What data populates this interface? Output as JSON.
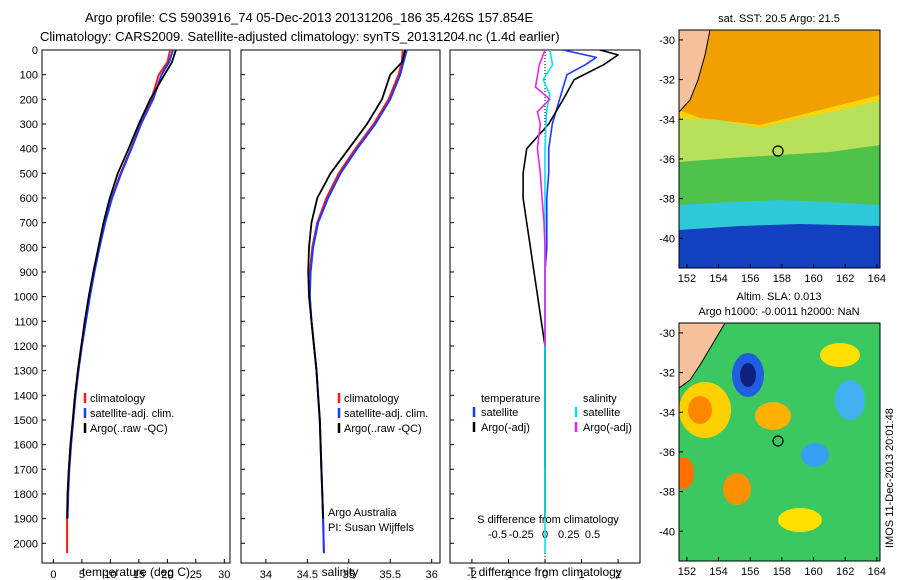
{
  "header": {
    "line1": "Argo profile: CS 5903916_74 05-Dec-2013 20131206_186 35.426S 157.854E",
    "line2": "Climatology: CARS2009. Satellite-adjusted climatology: synTS_20131204.nc (1.4d earlier)"
  },
  "colors": {
    "climatology": "#ff1a1a",
    "satellite": "#1a3aff",
    "argo": "#000000",
    "sat_salinity": "#00e5e5",
    "argo_adj_salinity": "#ee22ee",
    "land": "#f5c09a"
  },
  "axes": {
    "depth_ticks": [
      "0",
      "100",
      "200",
      "300",
      "400",
      "500",
      "600",
      "700",
      "800",
      "900",
      "1000",
      "1100",
      "1200",
      "1300",
      "1400",
      "1500",
      "1600",
      "1700",
      "1800",
      "1900",
      "2000"
    ],
    "temperature_ticks": [
      "0",
      "5",
      "10",
      "15",
      "20",
      "25",
      "30"
    ],
    "temperature_xlabel": "temperature (deg C)",
    "salinity_ticks": [
      "34",
      "34.5",
      "35",
      "35.5",
      "36"
    ],
    "salinity_xlabel": "salinity",
    "tdiff_ticks": [
      "-2",
      "-1",
      "0",
      "1",
      "2"
    ],
    "tdiff_xlabel": "T difference from climatology",
    "sdiff_ticks": [
      "-0.5",
      "-0.25",
      "0",
      "0.25",
      "0.5"
    ],
    "sdiff_label": "S difference from climatology"
  },
  "legends": {
    "profile": [
      "climatology",
      "satellite-adj. clim.",
      "Argo(..raw -QC)"
    ],
    "diff_temperature_title": "temperature",
    "diff_salinity_title": "salinity",
    "diff_temperature": [
      "satellite",
      "Argo(-adj)"
    ],
    "diff_salinity": [
      "satellite",
      "Argo(-adj)"
    ]
  },
  "credit": {
    "line1": "Argo Australia",
    "line2": "PI: Susan Wijffels"
  },
  "maps": {
    "sst_title": "sat. SST: 20.5 Argo: 21.5",
    "sla_title1": "Altim. SLA: 0.013",
    "sla_title2": "Argo h1000: -0.0011 h2000: NaN",
    "lat_ticks": [
      "-30",
      "-32",
      "-34",
      "-36",
      "-38",
      "-40"
    ],
    "lon_ticks": [
      "152",
      "154",
      "156",
      "158",
      "160",
      "162",
      "164"
    ],
    "stamp": "IMOS 11-Dec-2013 20:01:48",
    "float_location": {
      "lon": 157.854,
      "lat": -35.426
    }
  },
  "chart_data": [
    {
      "type": "line",
      "xlabel": "temperature (deg C)",
      "ylabel": "",
      "xlim": [
        -2,
        31
      ],
      "ylim": [
        2080,
        0
      ],
      "series": [
        {
          "name": "climatology",
          "x": [
            20.5,
            20.0,
            18.5,
            17.2,
            15.3,
            13.6,
            11.8,
            10.2,
            9.0,
            8.0,
            7.1,
            6.3,
            5.6,
            4.9,
            4.3,
            3.8,
            3.4,
            3.0,
            2.7,
            2.5,
            2.4,
            2.4
          ],
          "y": [
            0,
            50,
            100,
            200,
            300,
            400,
            500,
            600,
            700,
            800,
            900,
            1000,
            1100,
            1200,
            1300,
            1400,
            1500,
            1600,
            1700,
            1800,
            1900,
            2040
          ]
        },
        {
          "name": "satellite-adj. clim.",
          "x": [
            21.0,
            20.3,
            19.0,
            17.5,
            15.4,
            13.7,
            11.9,
            10.3,
            9.1,
            8.1,
            7.2,
            6.4,
            5.7,
            5.0,
            4.4,
            3.9,
            3.5,
            3.1,
            2.8,
            2.6,
            2.5
          ],
          "y": [
            0,
            50,
            100,
            200,
            300,
            400,
            500,
            600,
            700,
            800,
            900,
            1000,
            1100,
            1200,
            1300,
            1400,
            1500,
            1600,
            1700,
            1800,
            1900
          ]
        },
        {
          "name": "Argo(..raw -QC)",
          "x": [
            21.5,
            20.8,
            19.5,
            17.0,
            15.0,
            13.2,
            11.3,
            9.9,
            8.8,
            7.9,
            7.0,
            6.2,
            5.5,
            4.9,
            4.3,
            3.8,
            3.4,
            3.0,
            2.7,
            2.5,
            2.4
          ],
          "y": [
            0,
            50,
            100,
            200,
            300,
            400,
            500,
            600,
            700,
            800,
            900,
            1000,
            1100,
            1200,
            1300,
            1400,
            1500,
            1600,
            1700,
            1800,
            1900
          ]
        }
      ]
    },
    {
      "type": "line",
      "xlabel": "salinity",
      "ylabel": "",
      "xlim": [
        33.7,
        36.1
      ],
      "ylim": [
        2080,
        0
      ],
      "series": [
        {
          "name": "climatology",
          "x": [
            35.65,
            35.64,
            35.6,
            35.48,
            35.3,
            35.08,
            34.88,
            34.73,
            34.62,
            34.56,
            34.53,
            34.53,
            34.55,
            34.58,
            34.61,
            34.63,
            34.65,
            34.66,
            34.67,
            34.68,
            34.69,
            34.7
          ],
          "y": [
            0,
            50,
            100,
            200,
            300,
            400,
            500,
            600,
            700,
            800,
            900,
            1000,
            1100,
            1200,
            1300,
            1400,
            1500,
            1600,
            1700,
            1800,
            1900,
            2040
          ]
        },
        {
          "name": "satellite-adj. clim.",
          "x": [
            35.7,
            35.66,
            35.62,
            35.5,
            35.32,
            35.1,
            34.9,
            34.75,
            34.63,
            34.57,
            34.54,
            34.53,
            34.55,
            34.58,
            34.61,
            34.63,
            34.65,
            34.66,
            34.67,
            34.68,
            34.69,
            34.7
          ],
          "y": [
            0,
            50,
            100,
            200,
            300,
            400,
            500,
            600,
            700,
            800,
            900,
            1000,
            1100,
            1200,
            1300,
            1400,
            1500,
            1600,
            1700,
            1800,
            1900,
            2040
          ]
        },
        {
          "name": "Argo(..raw -QC)",
          "x": [
            35.68,
            35.64,
            35.5,
            35.4,
            35.22,
            35.0,
            34.78,
            34.62,
            34.55,
            34.52,
            34.51,
            34.52,
            34.55,
            34.58,
            34.61,
            34.63,
            34.65,
            34.66,
            34.67,
            34.68,
            34.69
          ],
          "y": [
            0,
            50,
            100,
            200,
            300,
            400,
            500,
            600,
            700,
            800,
            900,
            1000,
            1100,
            1200,
            1300,
            1400,
            1500,
            1600,
            1700,
            1800,
            1900
          ]
        }
      ]
    },
    {
      "type": "line",
      "xlabel": "T difference from climatology",
      "ylabel": "",
      "xlim": [
        -2.6,
        2.6
      ],
      "ylim": [
        2080,
        0
      ],
      "series": [
        {
          "name": "satellite (temperature)",
          "x": [
            0.5,
            1.4,
            1.1,
            0.6,
            0.4,
            0.2,
            0.1,
            0.1,
            0.05,
            0.05,
            0.05,
            0.0,
            0.0,
            0.0,
            0.0,
            0.0,
            0.0,
            0.0,
            0.0,
            0.0
          ],
          "y": [
            0,
            30,
            60,
            100,
            200,
            300,
            400,
            500,
            600,
            700,
            800,
            900,
            1000,
            1100,
            1200,
            1300,
            1400,
            1500,
            1600,
            1700
          ]
        },
        {
          "name": "Argo(-adj) (temperature)",
          "x": [
            1.5,
            2.0,
            1.6,
            0.8,
            0.5,
            0.1,
            -0.5,
            -0.6,
            -0.6,
            -0.5,
            -0.4,
            -0.3,
            -0.2,
            -0.1,
            0.0,
            0.0,
            0.0,
            0.0,
            0.0,
            0.0
          ],
          "y": [
            0,
            20,
            60,
            120,
            200,
            300,
            400,
            500,
            600,
            700,
            800,
            900,
            1000,
            1100,
            1200,
            1300,
            1400,
            1500,
            1700,
            1900
          ]
        },
        {
          "name": "satellite (salinity)",
          "x": [
            0.05,
            0.08,
            -0.02,
            0.05,
            0.02,
            0.01,
            0.0,
            0.0,
            0.0,
            0.0,
            0.0,
            0.0,
            0.0,
            0.0,
            0.0,
            0.0,
            0.0,
            0.0
          ],
          "y": [
            0,
            60,
            120,
            180,
            240,
            300,
            400,
            500,
            600,
            700,
            800,
            900,
            1000,
            1200,
            1400,
            1600,
            1800,
            2040
          ]
        },
        {
          "name": "Argo(-adj) (salinity)",
          "x": [
            0.0,
            -0.06,
            -0.1,
            0.05,
            -0.08,
            -0.05,
            -0.08,
            -0.05,
            -0.03,
            -0.01,
            0.0,
            0.0,
            0.0,
            0.0
          ],
          "y": [
            0,
            60,
            150,
            200,
            250,
            300,
            400,
            500,
            600,
            700,
            800,
            900,
            1000,
            1200
          ]
        }
      ]
    }
  ]
}
